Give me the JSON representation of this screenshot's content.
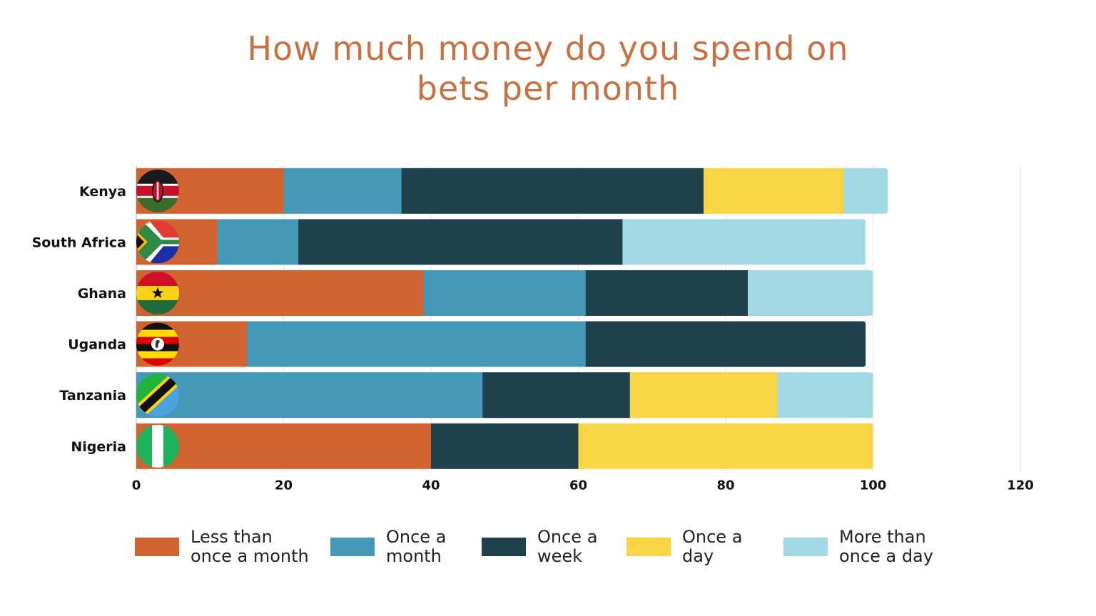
{
  "chart_data": {
    "type": "bar",
    "orientation": "horizontal",
    "stacked": true,
    "title": "How much money do you spend on bets per month",
    "title_lines": [
      "How much money do you spend on",
      "bets per month"
    ],
    "categories": [
      "Kenya",
      "South Africa",
      "Ghana",
      "Uganda",
      "Tanzania",
      "Nigeria"
    ],
    "series": [
      {
        "name": "Less than once a month",
        "name_lines": [
          "Less than",
          "once a month"
        ],
        "color": "#d06430",
        "values": [
          20,
          11,
          39,
          15,
          0,
          40
        ]
      },
      {
        "name": "Once a month",
        "name_lines": [
          "Once a",
          "month"
        ],
        "color": "#4698b8",
        "values": [
          16,
          11,
          22,
          46,
          47,
          0
        ]
      },
      {
        "name": "Once a week",
        "name_lines": [
          "Once a",
          "week"
        ],
        "color": "#1e414c",
        "values": [
          41,
          44,
          22,
          38,
          20,
          20
        ]
      },
      {
        "name": "Once a day",
        "name_lines": [
          "Once a",
          "day"
        ],
        "color": "#f9d445",
        "values": [
          19,
          0,
          0,
          0,
          20,
          40
        ]
      },
      {
        "name": "More than once a day",
        "name_lines": [
          "More than",
          "once a day"
        ],
        "color": "#a3d9e5",
        "values": [
          6,
          33,
          17,
          0,
          13,
          0
        ]
      }
    ],
    "xlim": [
      0,
      120
    ],
    "xticks": [
      "0",
      "20",
      "40",
      "60",
      "80",
      "100",
      "120"
    ],
    "grid": true,
    "legend_position": "bottom",
    "flag_icons": [
      "kenya-flag-icon",
      "south-africa-flag-icon",
      "ghana-flag-icon",
      "uganda-flag-icon",
      "tanzania-flag-icon",
      "nigeria-flag-icon"
    ]
  }
}
